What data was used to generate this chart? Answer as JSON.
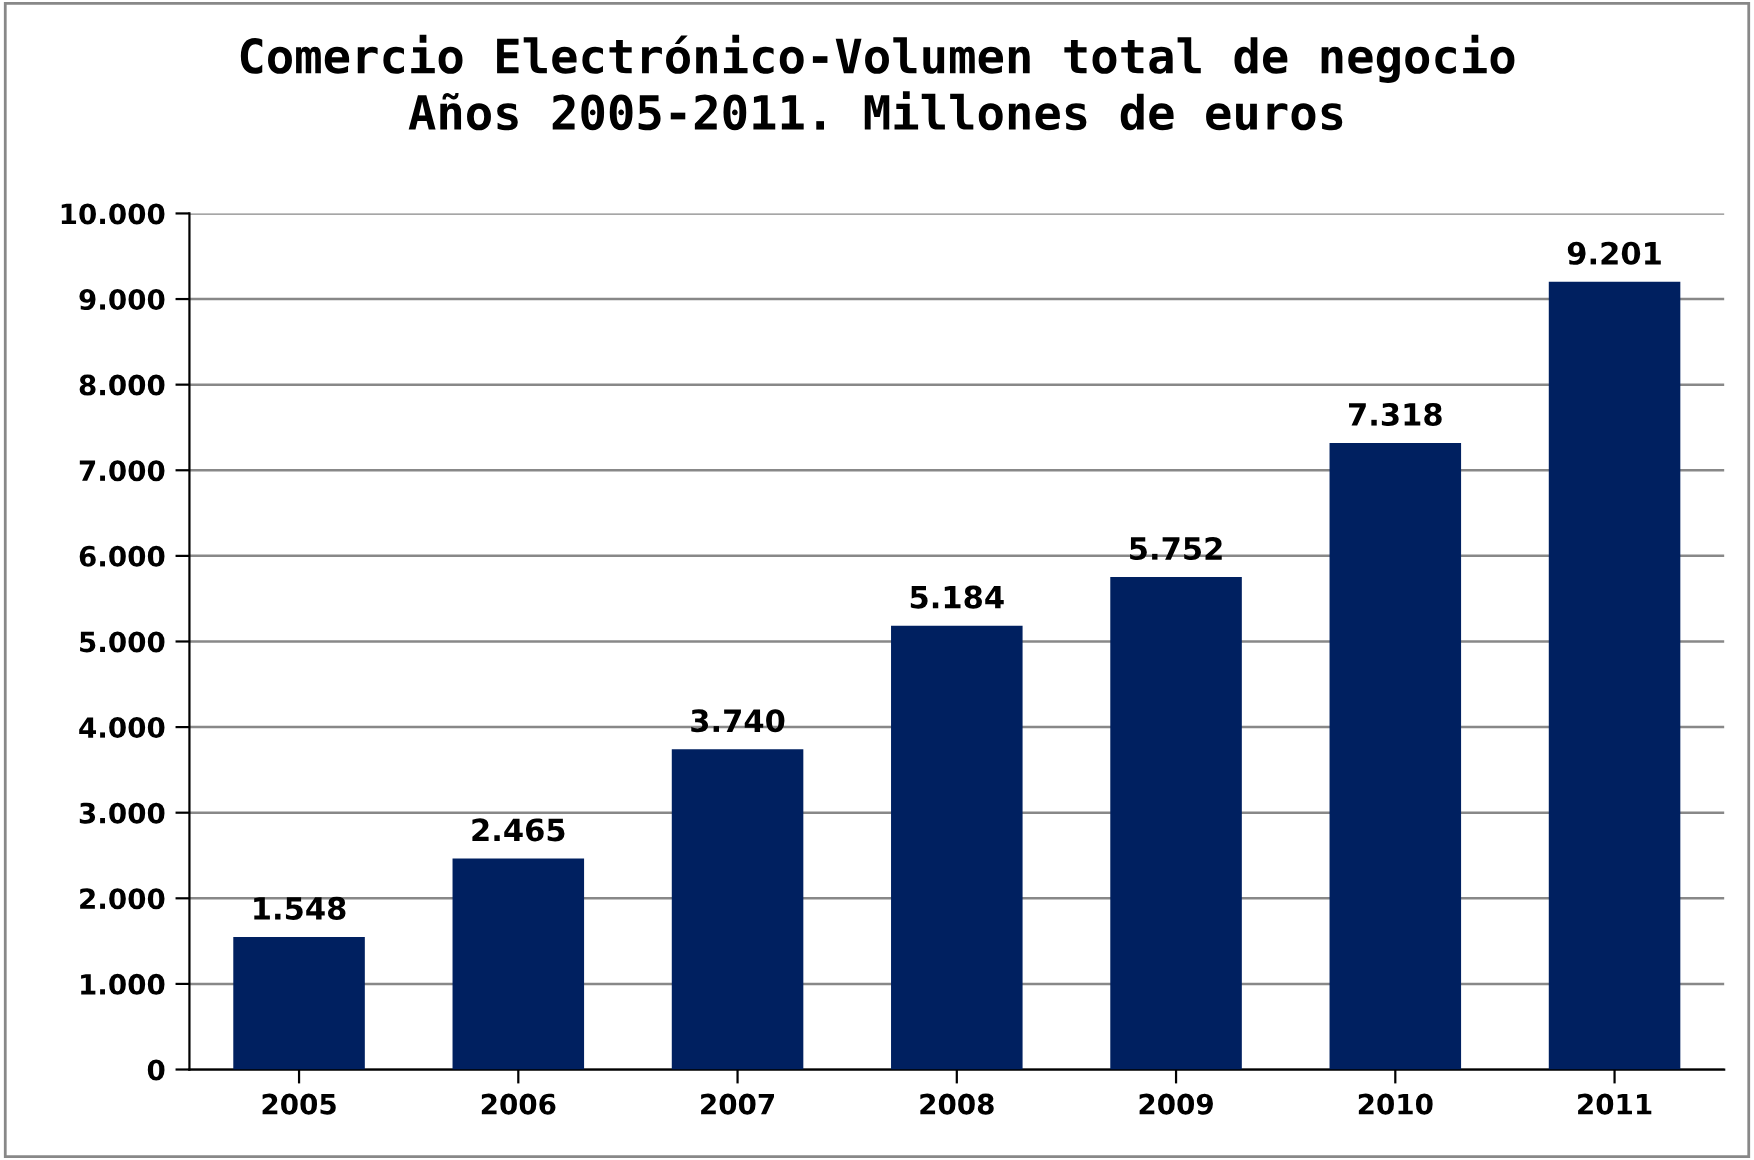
{
  "chart_data": {
    "type": "bar",
    "title": "Comercio Electrónico-Volumen total de negocio\nAños 2005-2011. Millones de euros",
    "categories": [
      "2005",
      "2006",
      "2007",
      "2008",
      "2009",
      "2010",
      "2011"
    ],
    "values": [
      1548,
      2465,
      3740,
      5184,
      5752,
      7318,
      9201
    ],
    "value_labels": [
      "1.548",
      "2.465",
      "3.740",
      "5.184",
      "5.752",
      "7.318",
      "9.201"
    ],
    "color": "#002060",
    "ylim": [
      0,
      10000
    ],
    "yticks": [
      {
        "value": 0,
        "label": "0"
      },
      {
        "value": 1000,
        "label": "1.000"
      },
      {
        "value": 2000,
        "label": "2.000"
      },
      {
        "value": 3000,
        "label": "3.000"
      },
      {
        "value": 4000,
        "label": "4.000"
      },
      {
        "value": 5000,
        "label": "5.000"
      },
      {
        "value": 6000,
        "label": "6.000"
      },
      {
        "value": 7000,
        "label": "7.000"
      },
      {
        "value": 8000,
        "label": "8.000"
      },
      {
        "value": 9000,
        "label": "9.000"
      },
      {
        "value": 10000,
        "label": "10.000"
      }
    ],
    "grid": "y",
    "legend": false
  }
}
